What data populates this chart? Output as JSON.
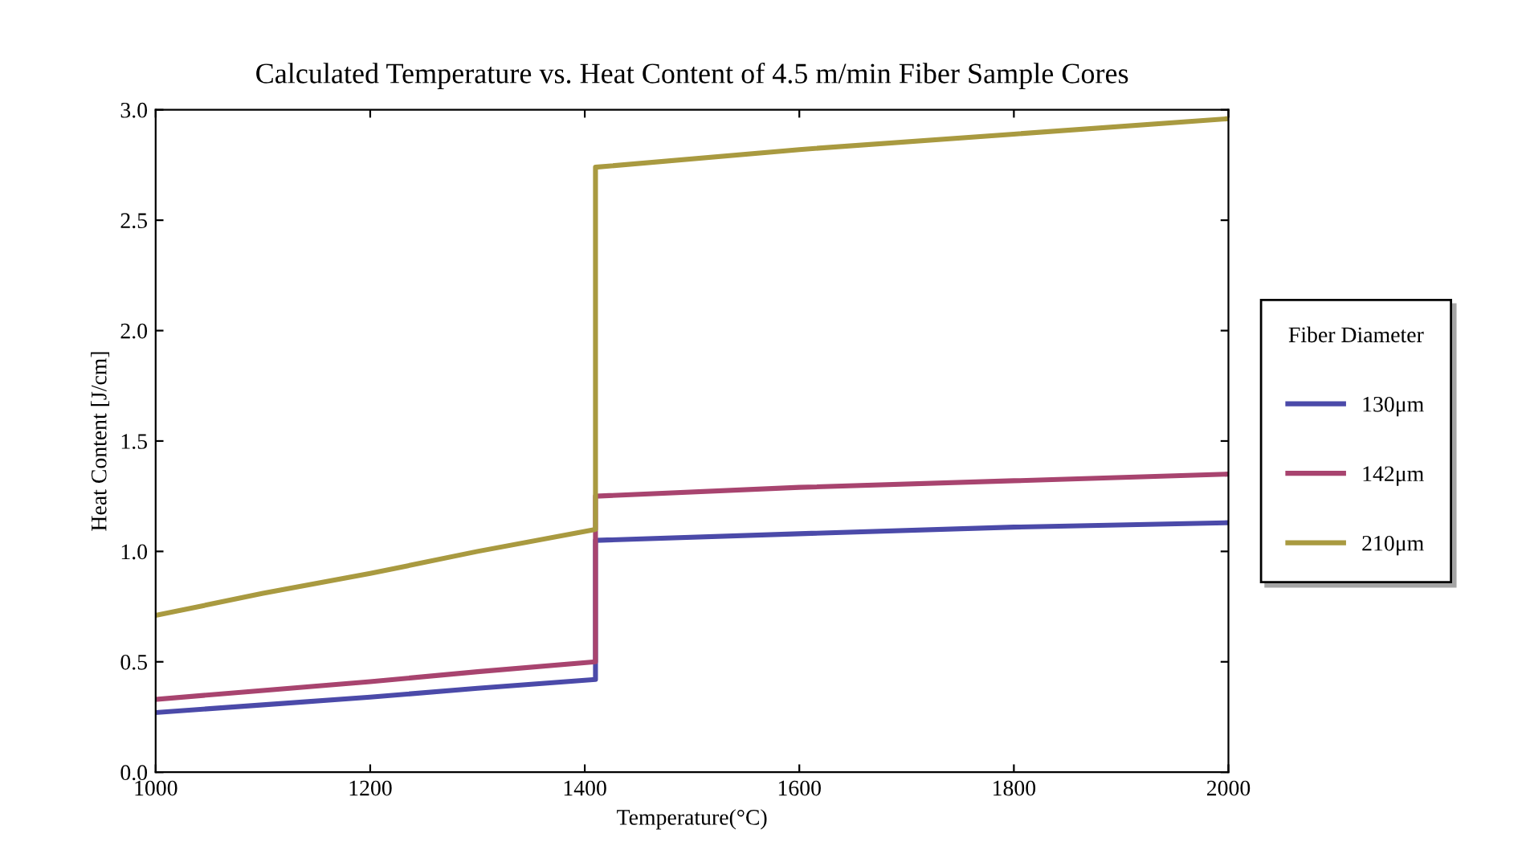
{
  "chart_data": {
    "type": "line",
    "title": "Calculated Temperature vs. Heat Content of 4.5 m/min Fiber Sample Cores",
    "xlabel": "Temperature(°C)",
    "ylabel": "Heat Content [J/cm]",
    "legend_title": "Fiber Diameter",
    "series": [
      {
        "name": "130μm",
        "color": "#4b4aa9",
        "x": [
          1000,
          1100,
          1200,
          1300,
          1410,
          1410,
          1600,
          1800,
          2000
        ],
        "values": [
          0.27,
          0.305,
          0.34,
          0.38,
          0.42,
          1.05,
          1.08,
          1.11,
          1.13
        ]
      },
      {
        "name": "142μm",
        "color": "#a8446f",
        "x": [
          1000,
          1100,
          1200,
          1300,
          1410,
          1410,
          1600,
          1800,
          2000
        ],
        "values": [
          0.33,
          0.37,
          0.41,
          0.455,
          0.5,
          1.25,
          1.29,
          1.32,
          1.35
        ]
      },
      {
        "name": "210μm",
        "color": "#a99a40",
        "x": [
          1000,
          1100,
          1200,
          1300,
          1410,
          1410,
          1600,
          1800,
          2000
        ],
        "values": [
          0.71,
          0.81,
          0.9,
          1.0,
          1.1,
          2.74,
          2.82,
          2.89,
          2.96
        ]
      }
    ],
    "xlim": [
      1000,
      2000
    ],
    "xticks": [
      1000,
      1200,
      1400,
      1600,
      1800,
      2000
    ],
    "ylim": [
      0,
      3.0
    ],
    "yticks": [
      {
        "value": 0,
        "label": "0.0"
      },
      0.5,
      {
        "value": 1,
        "label": "1.0"
      },
      1.5,
      {
        "value": 2,
        "label": "2.0"
      },
      2.5,
      {
        "value": 3,
        "label": "3.0"
      }
    ],
    "grid": false,
    "legend": "right",
    "marker": "none",
    "line_style": "solid"
  }
}
